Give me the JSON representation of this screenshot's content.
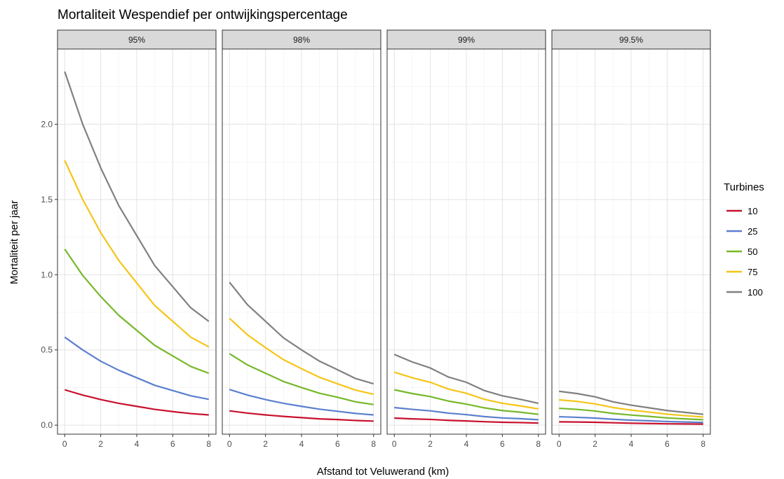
{
  "chart_data": {
    "type": "line",
    "title": "Mortaliteit Wespendief per ontwijkingspercentage",
    "xlabel": "Afstand tot Veluwerand (km)",
    "ylabel": "Mortaliteit per jaar",
    "x": [
      0,
      1,
      2,
      3,
      4,
      5,
      6,
      7,
      8
    ],
    "x_ticks": [
      "0",
      "2",
      "4",
      "6",
      "8"
    ],
    "y_ticks": [
      "0.0",
      "0.5",
      "1.0",
      "1.5",
      "2.0"
    ],
    "xlim": [
      -0.4,
      8.4
    ],
    "ylim": [
      -0.06,
      2.5
    ],
    "grid": true,
    "legend": {
      "title": "Turbines",
      "position": "right",
      "entries": [
        "10",
        "25",
        "50",
        "75",
        "100"
      ]
    },
    "colors": {
      "10": "#c8102e",
      "25": "#5b7fcf",
      "50": "#76b82a",
      "75": "#f5c518",
      "100": "#808080"
    },
    "panels": [
      {
        "label": "95%",
        "series": [
          {
            "name": "10",
            "values": [
              0.235,
              0.2,
              0.17,
              0.145,
              0.125,
              0.105,
              0.09,
              0.077,
              0.068
            ]
          },
          {
            "name": "25",
            "values": [
              0.585,
              0.5,
              0.425,
              0.365,
              0.315,
              0.265,
              0.23,
              0.195,
              0.172
            ]
          },
          {
            "name": "50",
            "values": [
              1.17,
              0.995,
              0.855,
              0.73,
              0.63,
              0.53,
              0.46,
              0.39,
              0.345
            ]
          },
          {
            "name": "75",
            "values": [
              1.76,
              1.5,
              1.28,
              1.095,
              0.945,
              0.795,
              0.69,
              0.585,
              0.52
            ]
          },
          {
            "name": "100",
            "values": [
              2.35,
              2.0,
              1.71,
              1.46,
              1.26,
              1.06,
              0.92,
              0.78,
              0.69
            ]
          }
        ]
      },
      {
        "label": "98%",
        "series": [
          {
            "name": "10",
            "values": [
              0.095,
              0.08,
              0.068,
              0.058,
              0.05,
              0.042,
              0.037,
              0.031,
              0.027
            ]
          },
          {
            "name": "25",
            "values": [
              0.237,
              0.2,
              0.17,
              0.145,
              0.125,
              0.106,
              0.092,
              0.078,
              0.068
            ]
          },
          {
            "name": "50",
            "values": [
              0.475,
              0.4,
              0.345,
              0.29,
              0.25,
              0.212,
              0.185,
              0.155,
              0.137
            ]
          },
          {
            "name": "75",
            "values": [
              0.71,
              0.6,
              0.515,
              0.435,
              0.375,
              0.318,
              0.275,
              0.233,
              0.205
            ]
          },
          {
            "name": "100",
            "values": [
              0.95,
              0.8,
              0.69,
              0.58,
              0.5,
              0.425,
              0.368,
              0.31,
              0.275
            ]
          }
        ]
      },
      {
        "label": "99%",
        "series": [
          {
            "name": "10",
            "values": [
              0.047,
              0.042,
              0.038,
              0.032,
              0.028,
              0.023,
              0.019,
              0.017,
              0.014
            ]
          },
          {
            "name": "25",
            "values": [
              0.117,
              0.105,
              0.095,
              0.08,
              0.07,
              0.057,
              0.048,
              0.043,
              0.036
            ]
          },
          {
            "name": "50",
            "values": [
              0.235,
              0.21,
              0.19,
              0.16,
              0.14,
              0.115,
              0.097,
              0.086,
              0.072
            ]
          },
          {
            "name": "75",
            "values": [
              0.352,
              0.315,
              0.285,
              0.24,
              0.212,
              0.172,
              0.145,
              0.128,
              0.108
            ]
          },
          {
            "name": "100",
            "values": [
              0.47,
              0.42,
              0.38,
              0.32,
              0.285,
              0.23,
              0.195,
              0.172,
              0.145
            ]
          }
        ]
      },
      {
        "label": "99.5%",
        "series": [
          {
            "name": "10",
            "values": [
              0.022,
              0.021,
              0.019,
              0.016,
              0.013,
              0.011,
              0.009,
              0.008,
              0.007
            ]
          },
          {
            "name": "25",
            "values": [
              0.056,
              0.052,
              0.047,
              0.039,
              0.033,
              0.029,
              0.024,
              0.021,
              0.018
            ]
          },
          {
            "name": "50",
            "values": [
              0.112,
              0.105,
              0.094,
              0.078,
              0.067,
              0.058,
              0.048,
              0.042,
              0.036
            ]
          },
          {
            "name": "75",
            "values": [
              0.168,
              0.158,
              0.141,
              0.117,
              0.1,
              0.087,
              0.073,
              0.063,
              0.054
            ]
          },
          {
            "name": "100",
            "values": [
              0.225,
              0.21,
              0.188,
              0.155,
              0.133,
              0.115,
              0.097,
              0.085,
              0.072
            ]
          }
        ]
      }
    ]
  }
}
